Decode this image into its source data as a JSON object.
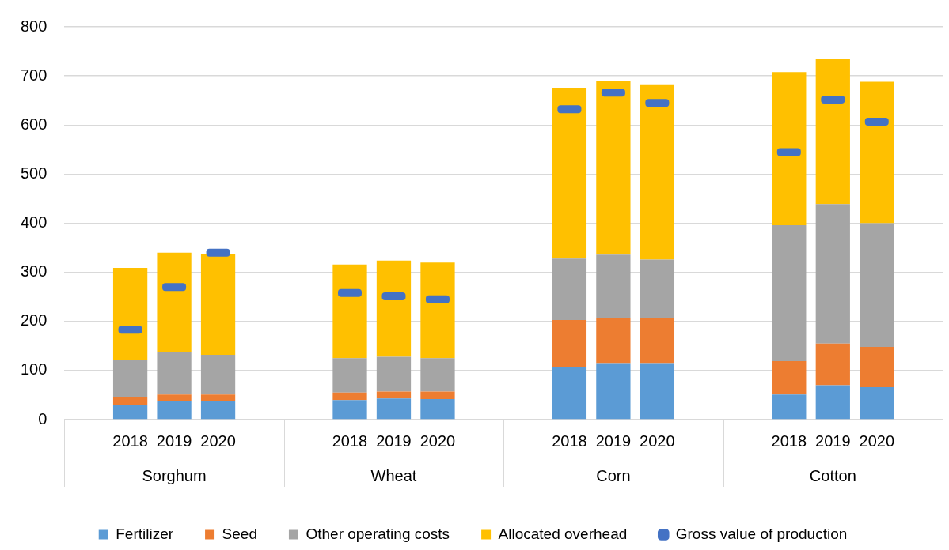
{
  "chart_data": {
    "type": "bar",
    "stacked": true,
    "categories": [
      null,
      "2018",
      "2019",
      "2020",
      null,
      null,
      "2018",
      "2019",
      "2020",
      null,
      null,
      "2018",
      "2019",
      "2020",
      null,
      null,
      "2018",
      "2019",
      "2020",
      null
    ],
    "series": [
      {
        "name": "Fertilizer",
        "color": "#5b9bd5",
        "values": [
          null,
          30,
          38,
          38,
          null,
          null,
          40,
          43,
          42,
          null,
          null,
          107,
          115,
          115,
          null,
          null,
          51,
          70,
          66,
          null
        ]
      },
      {
        "name": "Seed",
        "color": "#ed7d31",
        "values": [
          null,
          15,
          13,
          13,
          null,
          null,
          15,
          14,
          15,
          null,
          null,
          96,
          92,
          92,
          null,
          null,
          68,
          85,
          82,
          null
        ]
      },
      {
        "name": "Other operating costs",
        "color": "#a5a5a5",
        "values": [
          null,
          77,
          86,
          81,
          null,
          null,
          70,
          71,
          68,
          null,
          null,
          125,
          129,
          119,
          null,
          null,
          277,
          284,
          252,
          null
        ]
      },
      {
        "name": "Allocated overhead",
        "color": "#ffc000",
        "values": [
          null,
          187,
          203,
          206,
          null,
          null,
          191,
          196,
          195,
          null,
          null,
          348,
          353,
          357,
          null,
          null,
          312,
          295,
          288,
          null
        ]
      },
      {
        "name": "Gross value of production",
        "type": "scatter",
        "color": "#4472c4",
        "values": [
          null,
          183,
          270,
          340,
          null,
          null,
          258,
          251,
          245,
          null,
          null,
          632,
          666,
          645,
          null,
          null,
          545,
          652,
          607,
          null
        ]
      }
    ],
    "ylim": [
      0,
      800
    ],
    "yticks": [
      0,
      100,
      200,
      300,
      400,
      500,
      600,
      700,
      800
    ],
    "grid": "y",
    "legend": "bottom",
    "annotations": [
      "Sorghum",
      "Wheat",
      "Corn",
      "Cotton"
    ]
  }
}
